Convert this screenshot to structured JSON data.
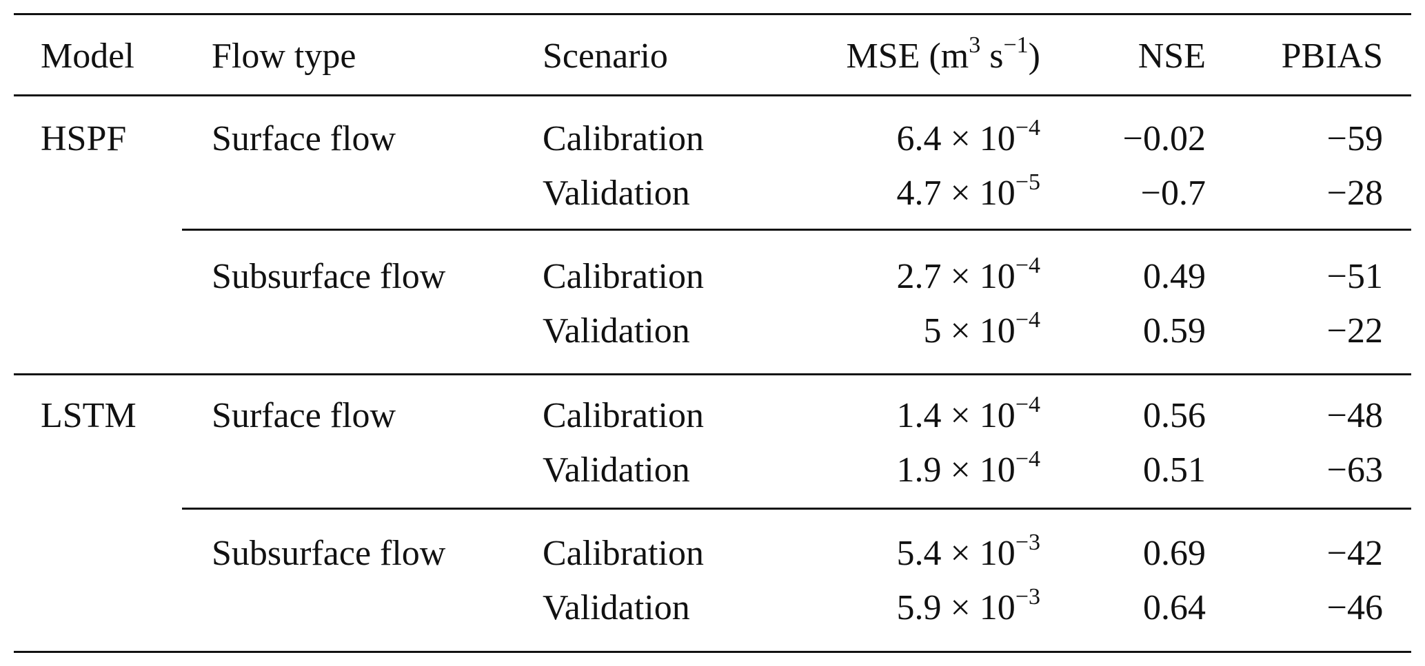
{
  "table": {
    "headers": {
      "model": "Model",
      "flow_type": "Flow type",
      "scenario": "Scenario",
      "mse_base": "MSE (m",
      "mse_sup1": "3",
      "mse_mid": " s",
      "mse_sup2": "−1",
      "mse_end": ")",
      "nse": "NSE",
      "pbias": "PBIAS"
    },
    "rows": [
      {
        "model": "HSPF",
        "flow": "Surface flow",
        "scenario": "Calibration",
        "mse_mant": "6.4 × 10",
        "mse_exp": "−4",
        "nse": "−0.02",
        "pbias": "−59"
      },
      {
        "model": "",
        "flow": "",
        "scenario": "Validation",
        "mse_mant": "4.7 × 10",
        "mse_exp": "−5",
        "nse": "−0.7",
        "pbias": "−28"
      },
      {
        "model": "",
        "flow": "Subsurface flow",
        "scenario": "Calibration",
        "mse_mant": "2.7 × 10",
        "mse_exp": "−4",
        "nse": "0.49",
        "pbias": "−51"
      },
      {
        "model": "",
        "flow": "",
        "scenario": "Validation",
        "mse_mant": "5 × 10",
        "mse_exp": "−4",
        "nse": "0.59",
        "pbias": "−22"
      },
      {
        "model": "LSTM",
        "flow": "Surface flow",
        "scenario": "Calibration",
        "mse_mant": "1.4 × 10",
        "mse_exp": "−4",
        "nse": "0.56",
        "pbias": "−48"
      },
      {
        "model": "",
        "flow": "",
        "scenario": "Validation",
        "mse_mant": "1.9 × 10",
        "mse_exp": "−4",
        "nse": "0.51",
        "pbias": "−63"
      },
      {
        "model": "",
        "flow": "Subsurface flow",
        "scenario": "Calibration",
        "mse_mant": "5.4 × 10",
        "mse_exp": "−3",
        "nse": "0.69",
        "pbias": "−42"
      },
      {
        "model": "",
        "flow": "",
        "scenario": "Validation",
        "mse_mant": "5.9 × 10",
        "mse_exp": "−3",
        "nse": "0.64",
        "pbias": "−46"
      }
    ]
  }
}
